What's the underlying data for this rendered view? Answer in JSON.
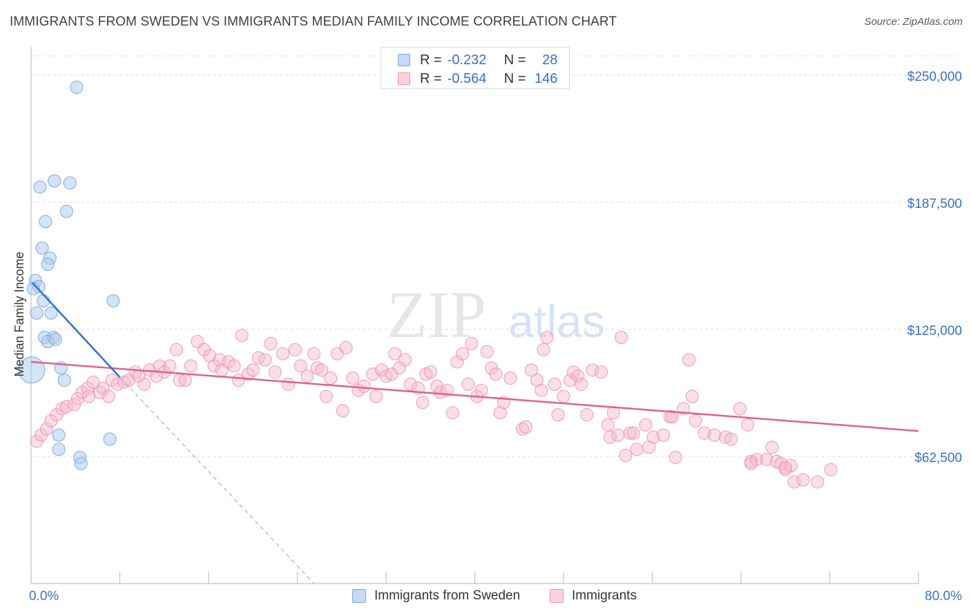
{
  "title": "IMMIGRANTS FROM SWEDEN VS IMMIGRANTS MEDIAN FAMILY INCOME CORRELATION CHART",
  "source": "Source: ZipAtlas.com",
  "watermark": {
    "zip": "ZIP",
    "atlas": "atlas"
  },
  "colors": {
    "blue_fill": "#a9c9f0",
    "blue_stroke": "#7aa7dc",
    "blue_line": "#2f6fd0",
    "pink_fill": "#f7b8cb",
    "pink_stroke": "#ec90ae",
    "pink_line": "#e0608d",
    "axis_label": "#3a6fc4",
    "grid": "#d9dce0"
  },
  "legend_top": {
    "rows": [
      {
        "label": "R =",
        "r": "-0.232",
        "n_label": "N =",
        "n": "28"
      },
      {
        "label": "R =",
        "r": "-0.564",
        "n_label": "N =",
        "n": "146"
      }
    ]
  },
  "legend_bottom": [
    {
      "label": "Immigrants from Sweden"
    },
    {
      "label": "Immigrants"
    }
  ],
  "chart_data": {
    "type": "scatter",
    "xlabel": "",
    "ylabel": "Median Family Income",
    "xlim": [
      0,
      80
    ],
    "ylim": [
      0,
      262500
    ],
    "x_tick_labels": [
      "0.0%",
      "80.0%"
    ],
    "y_ticks": [
      {
        "value": 62500,
        "label": "$62,500"
      },
      {
        "value": 125000,
        "label": "$125,000"
      },
      {
        "value": 187500,
        "label": "$187,500"
      },
      {
        "value": 250000,
        "label": "$250,000"
      }
    ],
    "series": [
      {
        "name": "Immigrants from Sweden",
        "points": [
          [
            0.05,
            105000,
            1
          ],
          [
            4.1,
            244000,
            0
          ],
          [
            0.8,
            195000,
            0
          ],
          [
            2.1,
            198000,
            0
          ],
          [
            3.5,
            197000,
            0
          ],
          [
            3.2,
            183000,
            0
          ],
          [
            1.3,
            178000,
            0
          ],
          [
            1.0,
            165000,
            0
          ],
          [
            1.7,
            160000,
            0
          ],
          [
            1.5,
            157000,
            0
          ],
          [
            0.4,
            149000,
            0
          ],
          [
            0.7,
            146000,
            0
          ],
          [
            0.2,
            145000,
            0
          ],
          [
            1.1,
            139000,
            0
          ],
          [
            7.4,
            139000,
            0
          ],
          [
            0.5,
            133000,
            0
          ],
          [
            1.8,
            133000,
            0
          ],
          [
            1.2,
            121000,
            0
          ],
          [
            2.0,
            121000,
            0
          ],
          [
            1.5,
            119000,
            0
          ],
          [
            2.2,
            120000,
            0
          ],
          [
            2.7,
            106000,
            0
          ],
          [
            3.0,
            100000,
            0
          ],
          [
            2.5,
            73000,
            0
          ],
          [
            7.1,
            71000,
            0
          ],
          [
            2.5,
            66000,
            0
          ],
          [
            4.4,
            62000,
            0
          ],
          [
            4.5,
            59000,
            0
          ]
        ],
        "trend": {
          "x0": 0.1,
          "y0": 148000,
          "x1": 8.0,
          "y1": 101500
        },
        "trend_extension": {
          "x0": 8.0,
          "y0": 101500,
          "x1": 25.5,
          "y1": 0
        }
      },
      {
        "name": "Immigrants",
        "points": [
          [
            0.5,
            70000
          ],
          [
            0.9,
            73000
          ],
          [
            1.4,
            76000
          ],
          [
            1.8,
            80000
          ],
          [
            2.3,
            83000
          ],
          [
            2.8,
            86000
          ],
          [
            3.2,
            87000
          ],
          [
            3.9,
            88000
          ],
          [
            4.2,
            91000
          ],
          [
            4.6,
            94000
          ],
          [
            5.1,
            96000
          ],
          [
            5.2,
            92000
          ],
          [
            5.6,
            99000
          ],
          [
            6.2,
            94000
          ],
          [
            6.5,
            96000
          ],
          [
            7.0,
            92000
          ],
          [
            7.3,
            100000
          ],
          [
            7.8,
            98000
          ],
          [
            8.4,
            99000
          ],
          [
            8.8,
            100000
          ],
          [
            9.4,
            104000
          ],
          [
            9.7,
            102000
          ],
          [
            10.2,
            98000
          ],
          [
            10.7,
            105000
          ],
          [
            11.3,
            102000
          ],
          [
            11.6,
            107000
          ],
          [
            12.0,
            104000
          ],
          [
            12.5,
            107000
          ],
          [
            13.1,
            115000
          ],
          [
            13.4,
            100000
          ],
          [
            13.9,
            100000
          ],
          [
            14.4,
            107000
          ],
          [
            15.0,
            119000
          ],
          [
            15.6,
            115000
          ],
          [
            16.1,
            112000
          ],
          [
            16.5,
            107000
          ],
          [
            17.0,
            110000
          ],
          [
            17.2,
            105000
          ],
          [
            17.8,
            109000
          ],
          [
            18.3,
            107000
          ],
          [
            18.7,
            100000
          ],
          [
            19.0,
            122000
          ],
          [
            19.6,
            103000
          ],
          [
            20.0,
            105000
          ],
          [
            20.5,
            111000
          ],
          [
            21.1,
            110000
          ],
          [
            21.6,
            118000
          ],
          [
            22.0,
            104000
          ],
          [
            22.7,
            113000
          ],
          [
            23.2,
            98000
          ],
          [
            23.8,
            115000
          ],
          [
            24.3,
            107000
          ],
          [
            24.9,
            102000
          ],
          [
            25.5,
            113000
          ],
          [
            25.8,
            106000
          ],
          [
            26.2,
            105000
          ],
          [
            26.6,
            92000
          ],
          [
            27.0,
            101000
          ],
          [
            27.6,
            113000
          ],
          [
            28.1,
            85000
          ],
          [
            28.4,
            116000
          ],
          [
            29.0,
            101000
          ],
          [
            29.5,
            95000
          ],
          [
            30.0,
            97000
          ],
          [
            30.8,
            103000
          ],
          [
            31.1,
            92000
          ],
          [
            31.6,
            105000
          ],
          [
            32.0,
            102000
          ],
          [
            32.5,
            103000
          ],
          [
            32.8,
            113000
          ],
          [
            33.2,
            106000
          ],
          [
            33.7,
            110000
          ],
          [
            34.2,
            98000
          ],
          [
            34.9,
            96000
          ],
          [
            35.3,
            89000
          ],
          [
            35.6,
            103000
          ],
          [
            36.0,
            104000
          ],
          [
            36.6,
            97000
          ],
          [
            36.9,
            94000
          ],
          [
            37.5,
            95000
          ],
          [
            38.0,
            84000
          ],
          [
            38.4,
            109000
          ],
          [
            38.9,
            113000
          ],
          [
            39.4,
            98000
          ],
          [
            39.7,
            118000
          ],
          [
            40.2,
            92000
          ],
          [
            40.6,
            95000
          ],
          [
            41.1,
            114000
          ],
          [
            41.5,
            106000
          ],
          [
            41.9,
            103000
          ],
          [
            42.3,
            84000
          ],
          [
            42.6,
            89000
          ],
          [
            43.2,
            101000
          ],
          [
            44.3,
            76000
          ],
          [
            44.6,
            77000
          ],
          [
            45.1,
            105000
          ],
          [
            45.6,
            100000
          ],
          [
            46.0,
            95000
          ],
          [
            46.2,
            115000
          ],
          [
            46.5,
            121000
          ],
          [
            47.2,
            98000
          ],
          [
            47.5,
            83000
          ],
          [
            48.0,
            92000
          ],
          [
            48.6,
            100000
          ],
          [
            48.9,
            104000
          ],
          [
            49.3,
            102000
          ],
          [
            49.6,
            98000
          ],
          [
            50.1,
            83000
          ],
          [
            50.6,
            105000
          ],
          [
            51.4,
            104000
          ],
          [
            52.0,
            78000
          ],
          [
            52.2,
            72000
          ],
          [
            52.5,
            84000
          ],
          [
            52.9,
            73000
          ],
          [
            53.2,
            121000
          ],
          [
            53.6,
            63000
          ],
          [
            54.0,
            74000
          ],
          [
            54.3,
            74000
          ],
          [
            54.6,
            66000
          ],
          [
            55.4,
            78000
          ],
          [
            55.7,
            67000
          ],
          [
            56.1,
            72000
          ],
          [
            57.0,
            73000
          ],
          [
            57.6,
            82000
          ],
          [
            57.8,
            82000
          ],
          [
            58.1,
            62000
          ],
          [
            58.8,
            86000
          ],
          [
            59.3,
            110000
          ],
          [
            59.6,
            92000
          ],
          [
            59.9,
            80000
          ],
          [
            60.7,
            74000
          ],
          [
            61.6,
            73000
          ],
          [
            62.6,
            72000
          ],
          [
            63.1,
            71000
          ],
          [
            63.9,
            86000
          ],
          [
            64.6,
            78000
          ],
          [
            64.9,
            60000
          ],
          [
            65.4,
            61000
          ],
          [
            66.3,
            61000
          ],
          [
            66.8,
            67000
          ],
          [
            67.2,
            60000
          ],
          [
            67.6,
            59000
          ],
          [
            68.0,
            56000
          ],
          [
            68.5,
            58000
          ],
          [
            68.8,
            50000
          ],
          [
            69.6,
            51000
          ],
          [
            70.9,
            50000
          ],
          [
            72.1,
            56000
          ],
          [
            68.0,
            57000
          ],
          [
            64.9,
            59000
          ]
        ],
        "trend": {
          "x0": 0,
          "y0": 109000,
          "x1": 80,
          "y1": 75000
        }
      }
    ]
  }
}
